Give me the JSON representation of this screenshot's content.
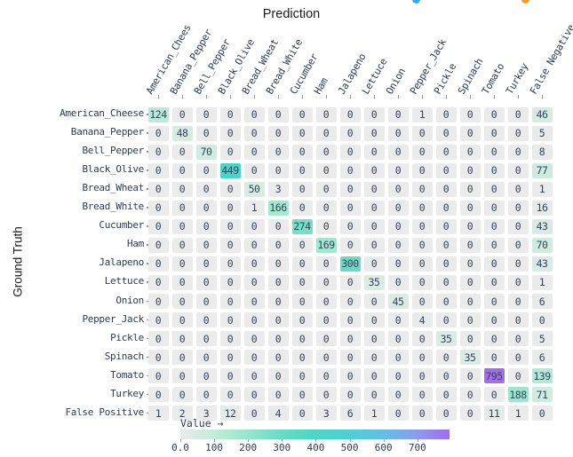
{
  "title": "Prediction",
  "y_axis_title": "Ground Truth",
  "legend_dots": [
    {
      "name": "blue-dot",
      "color": "#38a9e8"
    },
    {
      "name": "orange-dot",
      "color": "#f59a2e"
    }
  ],
  "colorbar": {
    "title": "Value →",
    "tick_labels": [
      "0.0",
      "100",
      "200",
      "300",
      "400",
      "500",
      "600",
      "700"
    ],
    "tick_values": [
      0,
      100,
      200,
      300,
      400,
      500,
      600,
      700
    ]
  },
  "chart_data": {
    "type": "heatmap",
    "title": "Prediction",
    "xlabel": "Prediction",
    "ylabel": "Ground Truth",
    "legend_title": "Value →",
    "vmin": 0,
    "vmax": 795,
    "columns": [
      "American_Chees",
      "Banana_Pepper",
      "Bell_Pepper",
      "Black_Olive",
      "Bread_Wheat",
      "Bread_White",
      "Cucumber",
      "Ham",
      "Jalapeno",
      "Lettuce",
      "Onion",
      "Pepper_Jack",
      "Pickle",
      "Spinach",
      "Tomato",
      "Turkey",
      "False Negative"
    ],
    "rows": [
      "American_Cheese",
      "Banana_Pepper",
      "Bell_Pepper",
      "Black_Olive",
      "Bread_Wheat",
      "Bread_White",
      "Cucumber",
      "Ham",
      "Jalapeno",
      "Lettuce",
      "Onion",
      "Pepper_Jack",
      "Pickle",
      "Spinach",
      "Tomato",
      "Turkey",
      "False Positive"
    ],
    "matrix": [
      [
        124,
        0,
        0,
        0,
        0,
        0,
        0,
        0,
        0,
        0,
        0,
        1,
        0,
        0,
        0,
        0,
        46
      ],
      [
        0,
        48,
        0,
        0,
        0,
        0,
        0,
        0,
        0,
        0,
        0,
        0,
        0,
        0,
        0,
        0,
        5
      ],
      [
        0,
        0,
        70,
        0,
        0,
        0,
        0,
        0,
        0,
        0,
        0,
        0,
        0,
        0,
        0,
        0,
        8
      ],
      [
        0,
        0,
        0,
        449,
        0,
        0,
        0,
        0,
        0,
        0,
        0,
        0,
        0,
        0,
        0,
        0,
        77
      ],
      [
        0,
        0,
        0,
        0,
        50,
        3,
        0,
        0,
        0,
        0,
        0,
        0,
        0,
        0,
        0,
        0,
        1
      ],
      [
        0,
        0,
        0,
        0,
        1,
        166,
        0,
        0,
        0,
        0,
        0,
        0,
        0,
        0,
        0,
        0,
        16
      ],
      [
        0,
        0,
        0,
        0,
        0,
        0,
        274,
        0,
        0,
        0,
        0,
        0,
        0,
        0,
        0,
        0,
        43
      ],
      [
        0,
        0,
        0,
        0,
        0,
        0,
        0,
        169,
        0,
        0,
        0,
        0,
        0,
        0,
        0,
        0,
        70
      ],
      [
        0,
        0,
        0,
        0,
        0,
        0,
        0,
        0,
        300,
        0,
        0,
        0,
        0,
        0,
        0,
        0,
        43
      ],
      [
        0,
        0,
        0,
        0,
        0,
        0,
        0,
        0,
        0,
        35,
        0,
        0,
        0,
        0,
        0,
        0,
        1
      ],
      [
        0,
        0,
        0,
        0,
        0,
        0,
        0,
        0,
        0,
        0,
        45,
        0,
        0,
        0,
        0,
        0,
        6
      ],
      [
        0,
        0,
        0,
        0,
        0,
        0,
        0,
        0,
        0,
        0,
        0,
        4,
        0,
        0,
        0,
        0,
        0
      ],
      [
        0,
        0,
        0,
        0,
        0,
        0,
        0,
        0,
        0,
        0,
        0,
        0,
        35,
        0,
        0,
        0,
        5
      ],
      [
        0,
        0,
        0,
        0,
        0,
        0,
        0,
        0,
        0,
        0,
        0,
        0,
        0,
        35,
        0,
        0,
        6
      ],
      [
        0,
        0,
        0,
        0,
        0,
        0,
        0,
        0,
        0,
        0,
        0,
        0,
        0,
        0,
        795,
        0,
        139
      ],
      [
        0,
        0,
        0,
        0,
        0,
        0,
        0,
        0,
        0,
        0,
        0,
        0,
        0,
        0,
        0,
        188,
        71
      ],
      [
        1,
        2,
        3,
        12,
        0,
        4,
        0,
        3,
        6,
        1,
        0,
        0,
        0,
        0,
        11,
        1,
        0
      ]
    ],
    "colorscale": [
      {
        "v": 0,
        "c": "#ebebeb"
      },
      {
        "v": 100,
        "c": "#c2ecda"
      },
      {
        "v": 200,
        "c": "#97e5cd"
      },
      {
        "v": 300,
        "c": "#68dbc4"
      },
      {
        "v": 400,
        "c": "#4bd6c5"
      },
      {
        "v": 500,
        "c": "#4fcfd3"
      },
      {
        "v": 600,
        "c": "#63bfe3"
      },
      {
        "v": 700,
        "c": "#8c9bee"
      },
      {
        "v": 795,
        "c": "#a36dea"
      }
    ]
  }
}
